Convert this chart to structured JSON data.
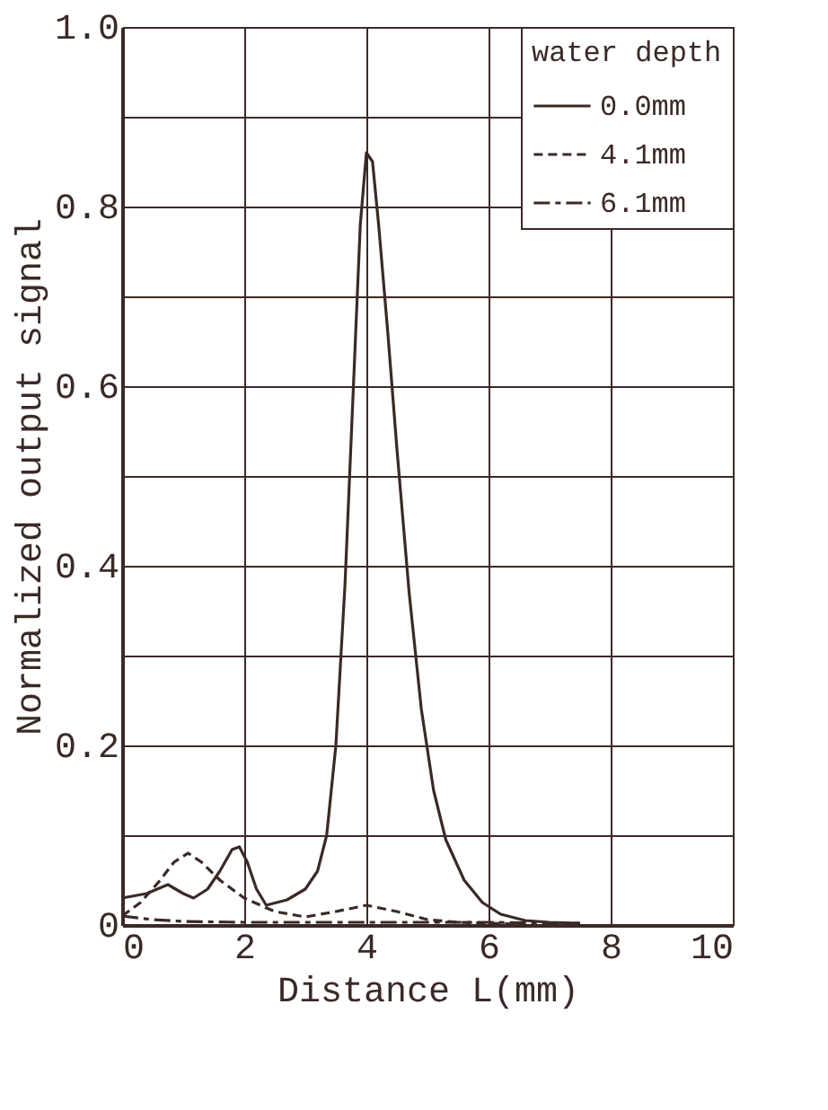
{
  "chart_data": {
    "type": "line",
    "xlabel": "Distance  L(mm)",
    "ylabel": "Normalized output signal",
    "legend_title": "water depth",
    "xlim": [
      0,
      10
    ],
    "xticks": [
      0,
      2,
      4,
      6,
      8,
      10
    ],
    "ylim": [
      0,
      1.0
    ],
    "yticks": [
      0,
      {
        "value": 0.1,
        "label": null
      },
      0.2,
      {
        "value": 0.3,
        "label": null
      },
      0.4,
      {
        "value": 0.5,
        "label": null
      },
      0.6,
      {
        "value": 0.7,
        "label": null
      },
      0.8,
      {
        "value": 0.9,
        "label": null
      },
      {
        "value": 1.0,
        "label": "1.0"
      }
    ],
    "grid": true,
    "legend": "top right",
    "marker": "none",
    "series": [
      {
        "name": "0.0mm",
        "color": "#3a2a27",
        "line_style": "solid",
        "x": [
          0,
          0.4,
          0.75,
          1.0,
          1.17,
          1.4,
          1.6,
          1.8,
          1.92,
          2.05,
          2.2,
          2.36,
          2.7,
          3.0,
          3.2,
          3.35,
          3.5,
          3.65,
          3.8,
          3.9,
          4.0,
          4.1,
          4.2,
          4.35,
          4.5,
          4.7,
          4.9,
          5.1,
          5.3,
          5.6,
          5.9,
          6.2,
          6.6,
          7.0,
          7.5
        ],
        "values": [
          0.03,
          0.035,
          0.045,
          0.035,
          0.03,
          0.04,
          0.06,
          0.084,
          0.087,
          0.07,
          0.04,
          0.022,
          0.028,
          0.04,
          0.06,
          0.1,
          0.2,
          0.38,
          0.62,
          0.78,
          0.86,
          0.85,
          0.78,
          0.66,
          0.53,
          0.37,
          0.24,
          0.15,
          0.095,
          0.05,
          0.025,
          0.012,
          0.005,
          0.003,
          0.002
        ]
      },
      {
        "name": "4.1mm",
        "color": "#3a2a27",
        "line_style": "dashed",
        "x": [
          0,
          0.3,
          0.6,
          0.85,
          1.08,
          1.3,
          1.6,
          2.0,
          2.5,
          3.0,
          3.5,
          4.0,
          4.5,
          5.0,
          5.5,
          6.0,
          6.5
        ],
        "values": [
          0.01,
          0.025,
          0.048,
          0.07,
          0.08,
          0.07,
          0.05,
          0.03,
          0.015,
          0.009,
          0.015,
          0.022,
          0.015,
          0.006,
          0.003,
          0.002,
          0.001
        ]
      },
      {
        "name": "6.1mm",
        "color": "#3a2a27",
        "line_style": "dashdot",
        "x": [
          0,
          0.5,
          1.0,
          2.0,
          3.0,
          4.0,
          5.0,
          6.0,
          7.0,
          7.5
        ],
        "values": [
          0.01,
          0.006,
          0.004,
          0.003,
          0.003,
          0.003,
          0.003,
          0.003,
          0.002,
          0.002
        ]
      }
    ]
  }
}
